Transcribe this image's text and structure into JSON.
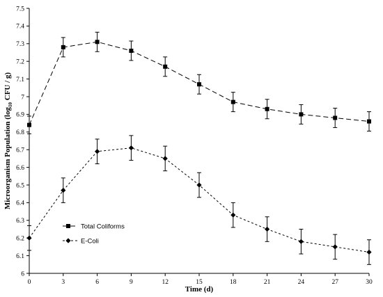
{
  "chart_data": {
    "type": "line",
    "title": "",
    "xlabel": "Time  (d)",
    "ylabel": {
      "prefix": "Microorganism  Population  (log",
      "subscript": "10",
      "suffix": " CFU / g)"
    },
    "xlim": [
      0,
      30
    ],
    "ylim": [
      6,
      7.5
    ],
    "xticks": [
      "0",
      "3",
      "6",
      "9",
      "12",
      "15",
      "18",
      "21",
      "24",
      "27",
      "30"
    ],
    "yticks": [
      "6",
      "6.1",
      "6.2",
      "6.3",
      "6.4",
      "6.5",
      "6.6",
      "6.7",
      "6.8",
      "6.9",
      "7",
      "7.1",
      "7.2",
      "7.3",
      "7.4",
      "7.5"
    ],
    "grid": false,
    "legend_position": "lower-left",
    "x": [
      0,
      3,
      6,
      9,
      12,
      15,
      18,
      21,
      24,
      27,
      30
    ],
    "series": [
      {
        "name": "Total Coliforms",
        "marker": "square",
        "line_style": "long-dash",
        "values": [
          6.84,
          7.28,
          7.31,
          7.26,
          7.17,
          7.07,
          6.97,
          6.93,
          6.9,
          6.88,
          6.86
        ],
        "errors": [
          0.05,
          0.055,
          0.055,
          0.055,
          0.055,
          0.055,
          0.055,
          0.055,
          0.055,
          0.055,
          0.055
        ]
      },
      {
        "name": "E-Coli",
        "marker": "diamond",
        "line_style": "short-dash",
        "values": [
          6.2,
          6.47,
          6.69,
          6.71,
          6.65,
          6.5,
          6.33,
          6.25,
          6.18,
          6.15,
          6.12
        ],
        "errors": [
          0.07,
          0.07,
          0.07,
          0.07,
          0.07,
          0.07,
          0.07,
          0.07,
          0.07,
          0.07,
          0.07
        ]
      }
    ]
  }
}
